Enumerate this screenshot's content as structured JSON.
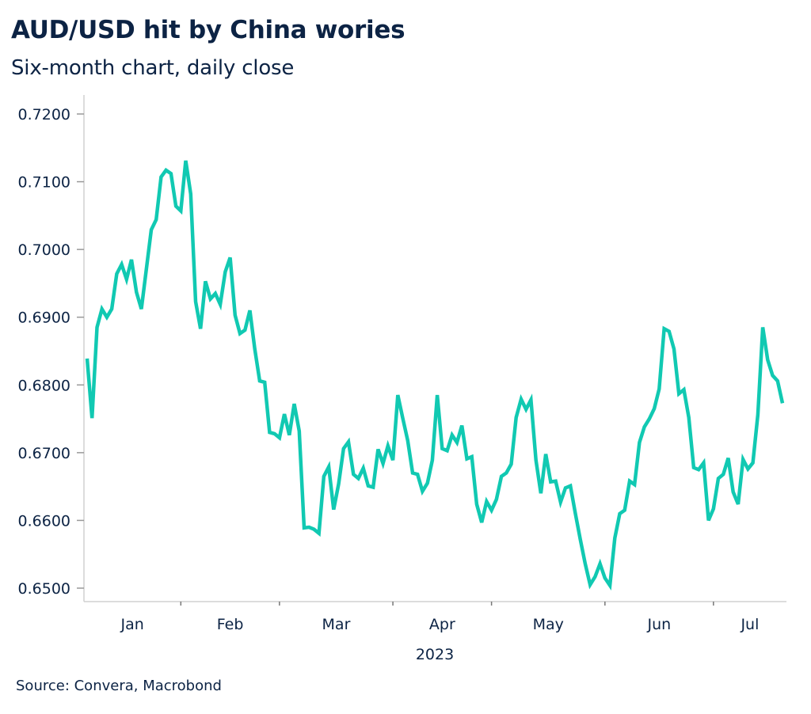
{
  "header": {
    "title": "AUD/USD hit by China wories",
    "subtitle": "Six-month chart, daily close"
  },
  "footer": {
    "source": "Source: Convera, Macrobond"
  },
  "colors": {
    "line": "#11c9b2",
    "text": "#0c2344",
    "axis": "#d0d0d0"
  },
  "chart_data": {
    "type": "line",
    "title": "AUD/USD hit by China wories",
    "subtitle": "Six-month chart, daily close",
    "xlabel": "2023",
    "ylabel": "",
    "ylim": [
      0.65,
      0.72
    ],
    "yticks": [
      "0.6500",
      "0.6600",
      "0.6700",
      "0.6800",
      "0.6900",
      "0.7000",
      "0.7100",
      "0.7200"
    ],
    "ytick_values": [
      0.65,
      0.66,
      0.67,
      0.68,
      0.69,
      0.7,
      0.71,
      0.72
    ],
    "x_period": "2022-12-23 to 2023-07-07 (approx, daily business-day closes)",
    "month_labels": [
      "Jan",
      "Feb",
      "Mar",
      "Apr",
      "May",
      "Jun",
      "Jul"
    ],
    "month_tick_index": [
      19,
      39,
      62,
      82,
      105,
      127
    ],
    "year_label": "2023",
    "grid": false,
    "legend": "none",
    "series": [
      {
        "name": "AUD/USD",
        "values": [
          0.6839,
          0.6751,
          0.6885,
          0.6912,
          0.69,
          0.6912,
          0.6964,
          0.6978,
          0.6956,
          0.6985,
          0.6937,
          0.6912,
          0.697,
          0.7029,
          0.7044,
          0.7107,
          0.7117,
          0.7112,
          0.7064,
          0.7057,
          0.7131,
          0.7082,
          0.6923,
          0.6883,
          0.6953,
          0.6927,
          0.6935,
          0.6919,
          0.6967,
          0.6988,
          0.6903,
          0.6876,
          0.6881,
          0.691,
          0.6853,
          0.6806,
          0.6804,
          0.673,
          0.6728,
          0.6722,
          0.6757,
          0.6726,
          0.6772,
          0.6732,
          0.6589,
          0.659,
          0.6587,
          0.6581,
          0.6665,
          0.6679,
          0.6616,
          0.6654,
          0.6706,
          0.6716,
          0.6668,
          0.6662,
          0.6677,
          0.6651,
          0.6649,
          0.6705,
          0.6684,
          0.671,
          0.6689,
          0.6785,
          0.6751,
          0.6718,
          0.667,
          0.6668,
          0.6643,
          0.6655,
          0.6689,
          0.6785,
          0.6706,
          0.6703,
          0.6726,
          0.6715,
          0.674,
          0.6691,
          0.6694,
          0.6624,
          0.6597,
          0.6628,
          0.6615,
          0.6631,
          0.6665,
          0.667,
          0.6683,
          0.6752,
          0.6779,
          0.6764,
          0.6778,
          0.6689,
          0.664,
          0.6698,
          0.6657,
          0.6658,
          0.6627,
          0.6648,
          0.6651,
          0.661,
          0.6572,
          0.6536,
          0.6505,
          0.6517,
          0.6536,
          0.6515,
          0.6504,
          0.6574,
          0.661,
          0.6615,
          0.6658,
          0.6653,
          0.6715,
          0.6738,
          0.675,
          0.6765,
          0.6794,
          0.6883,
          0.6879,
          0.6853,
          0.6787,
          0.6793,
          0.6752,
          0.6678,
          0.6675,
          0.6685,
          0.66,
          0.6617,
          0.6662,
          0.6668,
          0.6692,
          0.6642,
          0.6624,
          0.669,
          0.6676,
          0.6685,
          0.6756,
          0.6885,
          0.6837,
          0.6814,
          0.6806,
          0.6773
        ]
      }
    ]
  }
}
